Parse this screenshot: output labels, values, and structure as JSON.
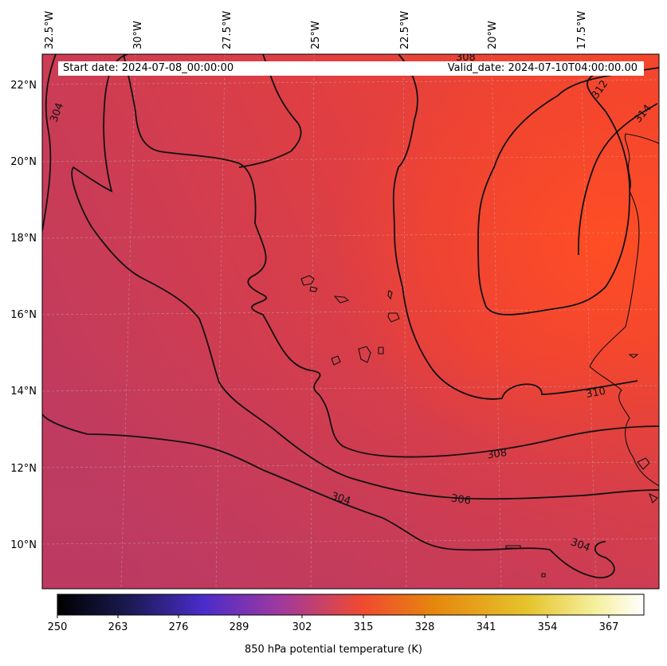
{
  "map": {
    "info_left": "Start date: 2024-07-08_00:00:00",
    "info_right": "Valid_date: 2024-07-10T04:00:00.00",
    "lon_labels": [
      "32.5°W",
      "30°W",
      "27.5°W",
      "25°W",
      "22.5°W",
      "20°W",
      "17.5°W"
    ],
    "lat_labels": [
      "22°N",
      "20°N",
      "18°N",
      "16°N",
      "14°N",
      "12°N",
      "10°N"
    ],
    "contour_labels": [
      "308",
      "312",
      "314",
      "304",
      "310",
      "308",
      "306",
      "304",
      "304"
    ],
    "extent": {
      "lon": [
        -32.8,
        -15.2
      ],
      "lat": [
        8.9,
        22.8
      ]
    }
  },
  "colorbar": {
    "title": "850 hPa potential temperature (K)",
    "ticks": [
      "250",
      "263",
      "276",
      "289",
      "302",
      "315",
      "328",
      "341",
      "354",
      "367"
    ],
    "range": [
      250,
      376
    ],
    "colormap": "CMRmap",
    "colors": [
      "#000000",
      "#1a1a50",
      "#4b2ccb",
      "#a0399e",
      "#f04a30",
      "#e6850e",
      "#e5c32b",
      "#f6f0a0",
      "#ffffff"
    ]
  }
}
